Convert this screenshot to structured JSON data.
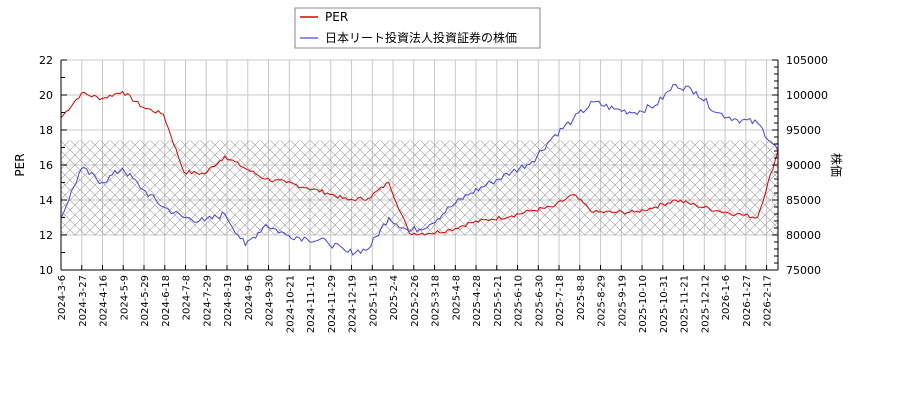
{
  "legend": {
    "items": [
      {
        "label": "PER",
        "color": "#dd0000"
      },
      {
        "label": "日本リート投資法人投資証券の株価",
        "color": "#4444dd"
      }
    ]
  },
  "axes": {
    "left_label": "PER",
    "right_label": "株価",
    "left_ticks": [
      "10",
      "12",
      "14",
      "16",
      "18",
      "20",
      "22"
    ],
    "right_ticks": [
      "75000",
      "80000",
      "85000",
      "90000",
      "95000",
      "100000",
      "105000"
    ],
    "x_ticks": [
      "2024-3-6",
      "2024-3-27",
      "2024-4-16",
      "2024-5-9",
      "2024-5-29",
      "2024-6-18",
      "2024-7-8",
      "2024-7-29",
      "2024-8-19",
      "2024-9-6",
      "2024-9-30",
      "2024-10-21",
      "2024-11-11",
      "2024-11-29",
      "2024-12-19",
      "2025-1-15",
      "2025-2-4",
      "2025-2-26",
      "2025-3-18",
      "2025-4-8",
      "2025-4-28",
      "2025-5-21",
      "2025-6-10",
      "2025-6-30",
      "2025-7-18",
      "2025-8-8",
      "2025-8-29",
      "2025-9-19",
      "2025-10-10",
      "2025-10-31",
      "2025-11-21",
      "2025-12-12",
      "2026-1-6",
      "2026-1-27",
      "2026-2-17"
    ]
  },
  "chart_data": {
    "type": "line",
    "title": "",
    "xlabel": "",
    "ylabel": "PER",
    "y2label": "株価",
    "ylim": [
      10,
      22
    ],
    "y2lim": [
      75000,
      105000
    ],
    "grid": true,
    "legend_position": "top-center",
    "shaded_band": {
      "axis": "PER",
      "from": 12,
      "to": 17.4,
      "pattern": "crosshatch"
    },
    "x": [
      "2024-3-6",
      "2024-3-27",
      "2024-4-16",
      "2024-5-9",
      "2024-5-29",
      "2024-6-18",
      "2024-7-8",
      "2024-7-29",
      "2024-8-19",
      "2024-9-6",
      "2024-9-30",
      "2024-10-21",
      "2024-11-11",
      "2024-11-29",
      "2024-12-19",
      "2025-1-15",
      "2025-2-4",
      "2025-2-26",
      "2025-3-18",
      "2025-4-8",
      "2025-4-28",
      "2025-5-21",
      "2025-6-10",
      "2025-6-30",
      "2025-7-18",
      "2025-8-8",
      "2025-8-29",
      "2025-9-19",
      "2025-10-10",
      "2025-10-31",
      "2025-11-21",
      "2025-12-12",
      "2026-1-6",
      "2026-1-27",
      "2026-2-17",
      "2026-3-3"
    ],
    "series": [
      {
        "name": "PER",
        "axis": "left",
        "color": "#dd0000",
        "values": [
          18.7,
          20.1,
          19.8,
          20.2,
          19.3,
          18.9,
          15.6,
          15.5,
          16.5,
          15.8,
          15.2,
          15.0,
          14.7,
          14.4,
          14.0,
          14.1,
          15.0,
          12.1,
          12.1,
          12.3,
          12.7,
          12.9,
          13.1,
          13.4,
          13.6,
          14.3,
          13.3,
          13.3,
          13.3,
          13.6,
          14.0,
          13.7,
          13.4,
          13.2,
          13.0,
          16.8
        ]
      },
      {
        "name": "日本リート投資法人投資証券の株価",
        "axis": "right",
        "color": "#4444dd",
        "values": [
          82500,
          89500,
          87500,
          89500,
          86500,
          84000,
          82500,
          82000,
          83000,
          78500,
          81500,
          80000,
          79500,
          79000,
          77500,
          78000,
          82500,
          80500,
          81500,
          84000,
          86000,
          87500,
          89000,
          90500,
          94000,
          96500,
          99000,
          98000,
          97500,
          98500,
          101500,
          100500,
          97500,
          96500,
          96000,
          92000
        ]
      }
    ]
  }
}
